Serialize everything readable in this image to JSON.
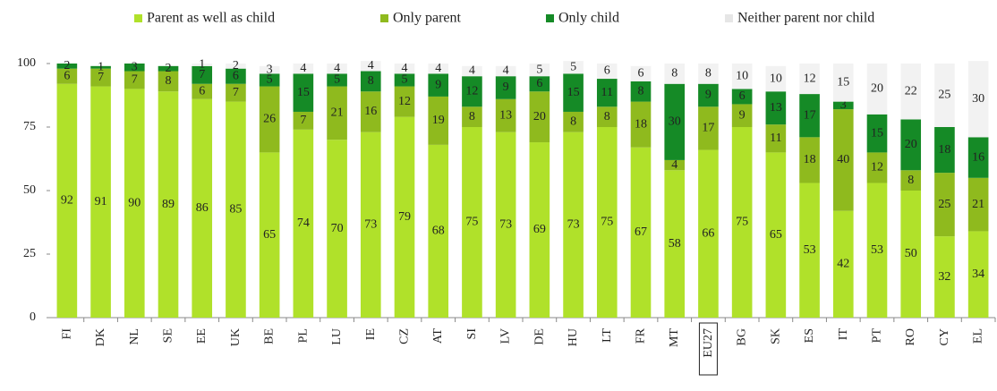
{
  "chart_data": {
    "type": "stacked_bar",
    "categories": [
      "FI",
      "DK",
      "NL",
      "SE",
      "EE",
      "UK",
      "BE",
      "PL",
      "LU",
      "IE",
      "CZ",
      "AT",
      "SI",
      "LV",
      "DE",
      "HU",
      "LT",
      "FR",
      "MT",
      "EU27",
      "BG",
      "SK",
      "ES",
      "IT",
      "PT",
      "RO",
      "CY",
      "EL"
    ],
    "series": [
      {
        "name": "Parent as well as child",
        "color": "#b0e12a",
        "values": [
          92,
          91,
          90,
          89,
          86,
          85,
          65,
          74,
          70,
          73,
          79,
          68,
          75,
          73,
          69,
          73,
          75,
          67,
          58,
          66,
          75,
          65,
          53,
          42,
          53,
          50,
          32,
          34
        ]
      },
      {
        "name": "Only parent",
        "color": "#8fba1e",
        "values": [
          6,
          7,
          7,
          8,
          6,
          7,
          26,
          7,
          21,
          16,
          12,
          19,
          8,
          13,
          20,
          8,
          8,
          18,
          4,
          17,
          9,
          11,
          18,
          40,
          12,
          8,
          25,
          21
        ]
      },
      {
        "name": "Only child",
        "color": "#158a26",
        "values": [
          2,
          1,
          3,
          2,
          7,
          6,
          5,
          15,
          5,
          8,
          5,
          9,
          12,
          9,
          6,
          15,
          11,
          8,
          30,
          9,
          6,
          13,
          17,
          3,
          15,
          20,
          18,
          16
        ]
      },
      {
        "name": "Neither parent nor child",
        "color": "#f2f2f2",
        "values": [
          null,
          null,
          null,
          null,
          1,
          2,
          3,
          4,
          4,
          4,
          4,
          4,
          4,
          4,
          5,
          5,
          6,
          6,
          8,
          8,
          10,
          10,
          12,
          15,
          20,
          22,
          25,
          30
        ]
      }
    ],
    "ylim": [
      0,
      100
    ],
    "yticks": [
      0,
      25,
      50,
      75,
      100
    ],
    "grid": false,
    "legend": "top",
    "highlight": 19
  }
}
